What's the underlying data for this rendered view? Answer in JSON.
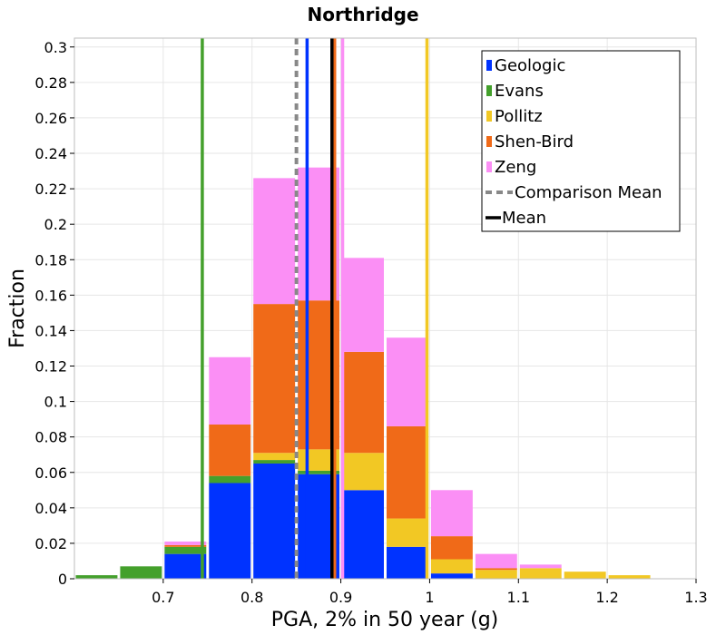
{
  "chart_data": {
    "type": "bar",
    "title": "Northridge",
    "xlabel": "PGA, 2% in 50 year (g)",
    "ylabel": "Fraction",
    "xlim": [
      0.6,
      1.3
    ],
    "ylim": [
      0,
      0.305
    ],
    "x_ticks": [
      "0.7",
      "0.8",
      "0.9",
      "1",
      "1.1",
      "1.2",
      "1.3"
    ],
    "y_ticks": [
      "0",
      "0.02",
      "0.04",
      "0.06",
      "0.08",
      "0.1",
      "0.12",
      "0.14",
      "0.16",
      "0.18",
      "0.2",
      "0.22",
      "0.24",
      "0.26",
      "0.28",
      "0.3"
    ],
    "grid": true,
    "legend_position": "top-right",
    "stacked": true,
    "bin_width": 0.05,
    "bin_centers": [
      0.625,
      0.675,
      0.725,
      0.775,
      0.825,
      0.875,
      0.925,
      0.975,
      1.025,
      1.075,
      1.125,
      1.175,
      1.225
    ],
    "series": [
      {
        "name": "Geologic",
        "color": "#0033ff",
        "values": [
          0,
          0,
          0.014,
          0.054,
          0.065,
          0.059,
          0.05,
          0.018,
          0.003,
          0,
          0,
          0,
          0
        ]
      },
      {
        "name": "Evans",
        "color": "#44a02c",
        "values": [
          0.002,
          0.007,
          0.004,
          0.004,
          0.002,
          0.002,
          0,
          0,
          0,
          0,
          0,
          0,
          0
        ]
      },
      {
        "name": "Pollitz",
        "color": "#f2c824",
        "values": [
          0,
          0,
          0,
          0,
          0.004,
          0.012,
          0.021,
          0.016,
          0.008,
          0.005,
          0.006,
          0.004,
          0.002
        ]
      },
      {
        "name": "Shen-Bird",
        "color": "#f06a18",
        "values": [
          0,
          0,
          0.001,
          0.029,
          0.084,
          0.084,
          0.057,
          0.052,
          0.013,
          0.001,
          0,
          0,
          0
        ]
      },
      {
        "name": "Zeng",
        "color": "#fb8ff5",
        "values": [
          0,
          0,
          0.002,
          0.038,
          0.071,
          0.075,
          0.053,
          0.05,
          0.026,
          0.008,
          0.002,
          0,
          0
        ]
      }
    ],
    "vertical_lines": [
      {
        "name": "Geologic",
        "x": 0.862,
        "color": "#0033ff",
        "style": "solid"
      },
      {
        "name": "Evans",
        "x": 0.744,
        "color": "#44a02c",
        "style": "solid"
      },
      {
        "name": "Pollitz",
        "x": 0.997,
        "color": "#f2c824",
        "style": "solid"
      },
      {
        "name": "Shen-Bird",
        "x": 0.893,
        "color": "#f06a18",
        "style": "solid"
      },
      {
        "name": "Zeng",
        "x": 0.902,
        "color": "#fb8ff5",
        "style": "solid"
      },
      {
        "name": "Comparison Mean",
        "x": 0.85,
        "color": "#888888",
        "style": "dashed"
      },
      {
        "name": "Mean",
        "x": 0.89,
        "color": "#000000",
        "style": "solid"
      }
    ],
    "legend": [
      {
        "label": "Geologic",
        "color": "#0033ff",
        "kind": "bar"
      },
      {
        "label": "Evans",
        "color": "#44a02c",
        "kind": "bar"
      },
      {
        "label": "Pollitz",
        "color": "#f2c824",
        "kind": "bar"
      },
      {
        "label": "Shen-Bird",
        "color": "#f06a18",
        "kind": "bar"
      },
      {
        "label": "Zeng",
        "color": "#fb8ff5",
        "kind": "bar"
      },
      {
        "label": "Comparison Mean",
        "color": "#888888",
        "kind": "dashed"
      },
      {
        "label": "Mean",
        "color": "#000000",
        "kind": "line"
      }
    ]
  }
}
